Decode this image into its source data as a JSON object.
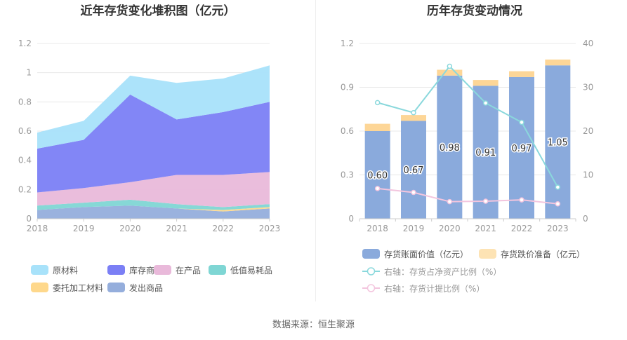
{
  "left": {
    "title": "近年存货变化堆积图（亿元）",
    "y_ticks": [
      "0",
      "0.2",
      "0.4",
      "0.6",
      "0.8",
      "1",
      "1.2"
    ],
    "x_ticks": [
      "2018",
      "2019",
      "2020",
      "2021",
      "2022",
      "2023"
    ],
    "legend": [
      {
        "label": "原材料",
        "color": "#a8e2fa"
      },
      {
        "label": "库存商品",
        "color": "#7b7ff5"
      },
      {
        "label": "在产品",
        "color": "#e9b9da"
      },
      {
        "label": "低值易耗品",
        "color": "#7fd6d4"
      },
      {
        "label": "委托加工材料",
        "color": "#fed88c"
      },
      {
        "label": "发出商品",
        "color": "#95aedc"
      }
    ]
  },
  "right": {
    "title": "历年存货变动情况",
    "y_left_ticks": [
      "0",
      "0.3",
      "0.6",
      "0.9",
      "1.2"
    ],
    "y_right_ticks": [
      "0",
      "10",
      "20",
      "30",
      "40"
    ],
    "x_ticks": [
      "2018",
      "2019",
      "2020",
      "2021",
      "2022",
      "2023"
    ],
    "bar_labels": [
      "0.60",
      "0.67",
      "0.98",
      "0.91",
      "0.97",
      "1.05"
    ],
    "legend": [
      {
        "label": "存货账面价值（亿元）",
        "color": "#8aaadc",
        "kind": "box"
      },
      {
        "label": "存货跌价准备（亿元）",
        "color": "#fde3b4",
        "kind": "box"
      },
      {
        "label": "右轴：存货占净资产比例（%）",
        "color": "#8ad8dc",
        "kind": "line"
      },
      {
        "label": "右轴：存货计提比例（%）",
        "color": "#f3c5de",
        "kind": "line"
      }
    ]
  },
  "source_text": "数据来源：恒生聚源",
  "chart_data": [
    {
      "type": "area",
      "title": "近年存货变化堆积图（亿元）",
      "stacked": true,
      "x": [
        "2018",
        "2019",
        "2020",
        "2021",
        "2022",
        "2023"
      ],
      "ylim": [
        0,
        1.2
      ],
      "grid": true,
      "legend_position": "bottom",
      "series": [
        {
          "name": "发出商品",
          "color": "#95aedc",
          "values": [
            0.06,
            0.08,
            0.09,
            0.07,
            0.05,
            0.07
          ]
        },
        {
          "name": "委托加工材料",
          "color": "#fed88c",
          "values": [
            0.0,
            0.0,
            0.0,
            0.0,
            0.01,
            0.01
          ]
        },
        {
          "name": "低值易耗品",
          "color": "#7fd6d4",
          "values": [
            0.03,
            0.03,
            0.04,
            0.03,
            0.02,
            0.02
          ]
        },
        {
          "name": "在产品",
          "color": "#e9b9da",
          "values": [
            0.09,
            0.1,
            0.12,
            0.2,
            0.22,
            0.22
          ]
        },
        {
          "name": "库存商品",
          "color": "#7b7ff5",
          "values": [
            0.3,
            0.33,
            0.6,
            0.38,
            0.43,
            0.48
          ]
        },
        {
          "name": "原材料",
          "color": "#a8e2fa",
          "values": [
            0.11,
            0.13,
            0.13,
            0.25,
            0.23,
            0.25
          ]
        }
      ]
    },
    {
      "type": "bar",
      "title": "历年存货变动情况",
      "stacked": true,
      "categories": [
        "2018",
        "2019",
        "2020",
        "2021",
        "2022",
        "2023"
      ],
      "ylim": [
        0,
        1.2
      ],
      "y2lim": [
        0,
        40
      ],
      "grid": true,
      "legend_position": "bottom",
      "series": [
        {
          "name": "存货账面价值（亿元）",
          "color": "#8aaadc",
          "axis": "left",
          "values": [
            0.6,
            0.67,
            0.98,
            0.91,
            0.97,
            1.05
          ]
        },
        {
          "name": "存货跌价准备（亿元）",
          "color": "#fde3b4",
          "axis": "left",
          "values": [
            0.05,
            0.04,
            0.04,
            0.04,
            0.04,
            0.04
          ]
        },
        {
          "name": "右轴：存货占净资产比例（%）",
          "color": "#8ad8dc",
          "axis": "right",
          "kind": "line",
          "values": [
            26.5,
            24.2,
            34.8,
            26.4,
            22.0,
            7.2
          ]
        },
        {
          "name": "右轴：存货计提比例（%）",
          "color": "#f3c5de",
          "axis": "right",
          "kind": "line",
          "values": [
            6.9,
            6.0,
            3.9,
            4.0,
            4.3,
            3.4
          ]
        }
      ]
    }
  ]
}
